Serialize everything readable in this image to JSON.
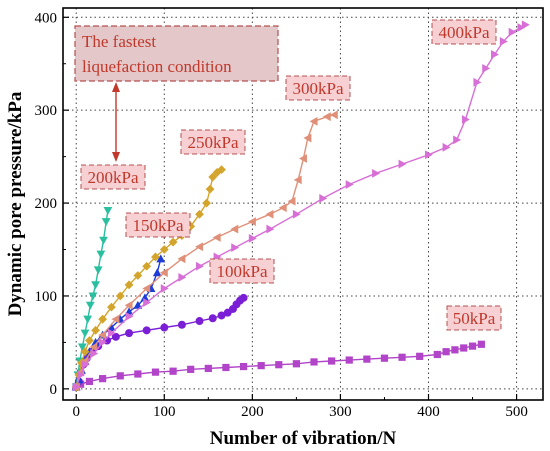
{
  "chart_data": {
    "type": "line",
    "xlabel": "Number of vibration/N",
    "ylabel": "Dynamic pore pressure/kPa",
    "xlim": [
      -15,
      530
    ],
    "ylim": [
      -12,
      410
    ],
    "x_ticks": [
      0,
      100,
      200,
      300,
      400,
      500
    ],
    "y_ticks": [
      0,
      100,
      200,
      300,
      400
    ],
    "grid": true,
    "series": [
      {
        "name": "50kPa",
        "color": "#b144c8",
        "marker": "square",
        "points": [
          [
            0,
            2
          ],
          [
            5,
            5
          ],
          [
            15,
            8
          ],
          [
            30,
            11
          ],
          [
            50,
            14
          ],
          [
            70,
            16
          ],
          [
            90,
            18
          ],
          [
            110,
            19
          ],
          [
            130,
            21
          ],
          [
            150,
            22
          ],
          [
            170,
            23
          ],
          [
            190,
            24
          ],
          [
            210,
            25
          ],
          [
            230,
            26
          ],
          [
            250,
            27
          ],
          [
            270,
            29
          ],
          [
            290,
            30
          ],
          [
            310,
            31
          ],
          [
            330,
            32
          ],
          [
            350,
            33
          ],
          [
            370,
            34
          ],
          [
            390,
            35
          ],
          [
            410,
            37
          ],
          [
            420,
            40
          ],
          [
            430,
            42
          ],
          [
            440,
            44
          ],
          [
            450,
            46
          ],
          [
            460,
            48
          ]
        ]
      },
      {
        "name": "100kPa",
        "color": "#7a1fd6",
        "marker": "circle",
        "points": [
          [
            0,
            2
          ],
          [
            3,
            8
          ],
          [
            5,
            18
          ],
          [
            8,
            26
          ],
          [
            12,
            33
          ],
          [
            18,
            40
          ],
          [
            25,
            46
          ],
          [
            35,
            52
          ],
          [
            45,
            56
          ],
          [
            60,
            60
          ],
          [
            80,
            63
          ],
          [
            100,
            66
          ],
          [
            120,
            69
          ],
          [
            140,
            73
          ],
          [
            155,
            76
          ],
          [
            165,
            79
          ],
          [
            172,
            82
          ],
          [
            178,
            86
          ],
          [
            182,
            91
          ],
          [
            186,
            95
          ],
          [
            190,
            98
          ]
        ]
      },
      {
        "name": "150kPa",
        "color": "#1e3dd6",
        "marker": "triangle-up",
        "points": [
          [
            0,
            2
          ],
          [
            3,
            10
          ],
          [
            6,
            20
          ],
          [
            10,
            30
          ],
          [
            15,
            40
          ],
          [
            22,
            50
          ],
          [
            30,
            58
          ],
          [
            40,
            66
          ],
          [
            50,
            75
          ],
          [
            60,
            83
          ],
          [
            70,
            90
          ],
          [
            78,
            98
          ],
          [
            85,
            108
          ],
          [
            92,
            125
          ],
          [
            96,
            140
          ]
        ]
      },
      {
        "name": "200kPa",
        "color": "#2abf9f",
        "marker": "triangle-down",
        "points": [
          [
            0,
            2
          ],
          [
            2,
            15
          ],
          [
            4,
            30
          ],
          [
            7,
            45
          ],
          [
            10,
            60
          ],
          [
            13,
            75
          ],
          [
            16,
            90
          ],
          [
            19,
            100
          ],
          [
            22,
            112
          ],
          [
            25,
            128
          ],
          [
            28,
            145
          ],
          [
            31,
            160
          ],
          [
            34,
            180
          ],
          [
            36,
            192
          ]
        ]
      },
      {
        "name": "250kPa",
        "color": "#d4a52c",
        "marker": "diamond",
        "points": [
          [
            0,
            2
          ],
          [
            3,
            15
          ],
          [
            6,
            28
          ],
          [
            10,
            40
          ],
          [
            15,
            52
          ],
          [
            22,
            63
          ],
          [
            30,
            75
          ],
          [
            40,
            88
          ],
          [
            50,
            100
          ],
          [
            60,
            112
          ],
          [
            70,
            122
          ],
          [
            80,
            132
          ],
          [
            90,
            142
          ],
          [
            100,
            150
          ],
          [
            110,
            158
          ],
          [
            120,
            165
          ],
          [
            130,
            175
          ],
          [
            140,
            188
          ],
          [
            148,
            200
          ],
          [
            152,
            215
          ],
          [
            155,
            228
          ],
          [
            160,
            233
          ],
          [
            165,
            236
          ]
        ]
      },
      {
        "name": "300kPa",
        "color": "#e09078",
        "marker": "triangle-left",
        "points": [
          [
            0,
            2
          ],
          [
            5,
            18
          ],
          [
            10,
            30
          ],
          [
            20,
            45
          ],
          [
            30,
            58
          ],
          [
            45,
            75
          ],
          [
            60,
            90
          ],
          [
            80,
            108
          ],
          [
            100,
            125
          ],
          [
            120,
            140
          ],
          [
            140,
            153
          ],
          [
            160,
            163
          ],
          [
            180,
            172
          ],
          [
            200,
            180
          ],
          [
            220,
            188
          ],
          [
            235,
            195
          ],
          [
            245,
            202
          ],
          [
            252,
            225
          ],
          [
            258,
            248
          ],
          [
            263,
            270
          ],
          [
            270,
            288
          ],
          [
            285,
            293
          ],
          [
            293,
            295
          ]
        ]
      },
      {
        "name": "400kPa",
        "color": "#d76fd6",
        "marker": "triangle-right",
        "points": [
          [
            0,
            2
          ],
          [
            5,
            15
          ],
          [
            10,
            26
          ],
          [
            20,
            38
          ],
          [
            30,
            50
          ],
          [
            40,
            60
          ],
          [
            60,
            78
          ],
          [
            80,
            93
          ],
          [
            100,
            108
          ],
          [
            120,
            120
          ],
          [
            140,
            132
          ],
          [
            160,
            142
          ],
          [
            180,
            152
          ],
          [
            200,
            162
          ],
          [
            220,
            172
          ],
          [
            250,
            188
          ],
          [
            280,
            205
          ],
          [
            310,
            220
          ],
          [
            340,
            232
          ],
          [
            370,
            242
          ],
          [
            400,
            252
          ],
          [
            420,
            260
          ],
          [
            432,
            268
          ],
          [
            442,
            290
          ],
          [
            455,
            330
          ],
          [
            465,
            345
          ],
          [
            475,
            360
          ],
          [
            485,
            374
          ],
          [
            495,
            384
          ],
          [
            505,
            389
          ],
          [
            510,
            392
          ]
        ]
      }
    ],
    "annotations": [
      {
        "lines": [
          "The fastest",
          "liquefaction condition"
        ]
      }
    ]
  }
}
